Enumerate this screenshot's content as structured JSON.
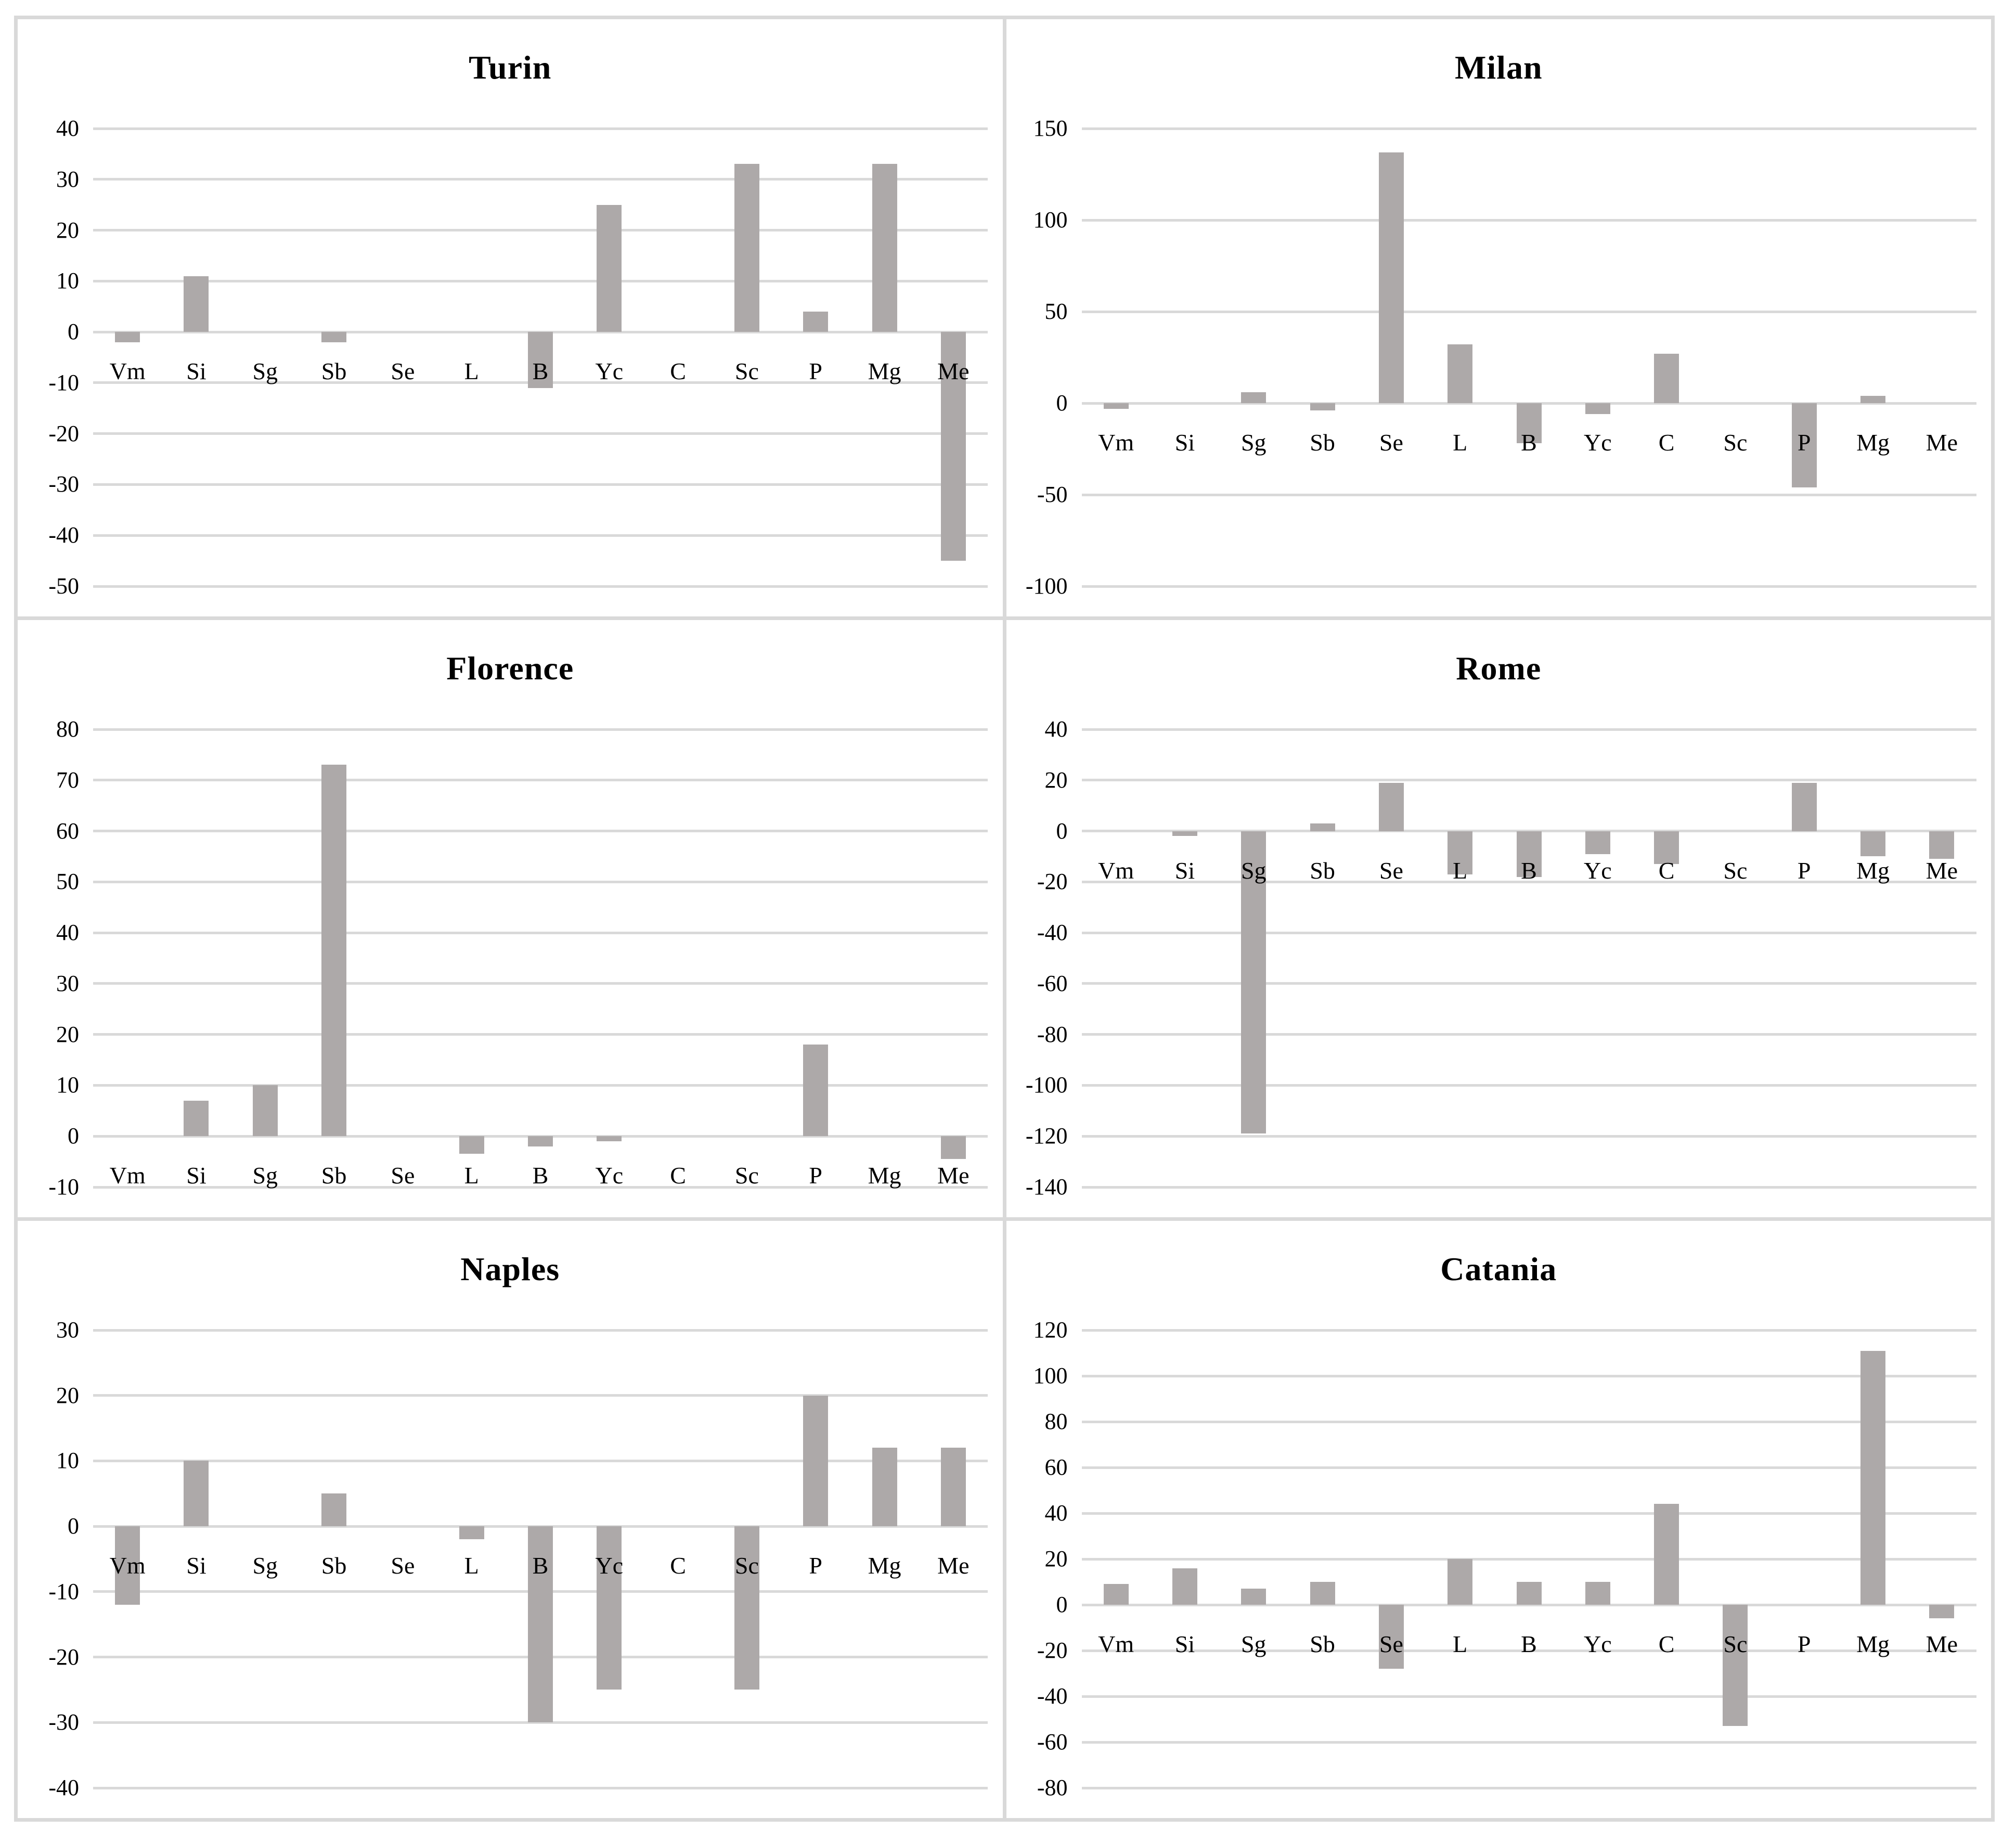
{
  "figure": {
    "kind": "small-multiples bar charts",
    "panel_titles": [
      "Turin",
      "Milan",
      "Florence",
      "Rome",
      "Naples",
      "Catania"
    ]
  },
  "colors": {
    "bar": "#ada9a9",
    "gridline": "#d9d9d9",
    "panel_border": "#d9d9d9",
    "background": "#ffffff",
    "text": "#000000"
  },
  "chart_data": [
    {
      "type": "bar",
      "title": "Turin",
      "categories": [
        "Vm",
        "Si",
        "Sg",
        "Sb",
        "Se",
        "L",
        "B",
        "Yc",
        "C",
        "Sc",
        "P",
        "Mg",
        "Me"
      ],
      "values": [
        -2,
        11,
        0,
        -2,
        0,
        0,
        -11,
        25,
        0,
        33,
        4,
        33,
        -45
      ],
      "ylim": [
        -50,
        40
      ],
      "ytick_step": 10,
      "xlabel": "",
      "ylabel": "",
      "grid": true,
      "legend": false
    },
    {
      "type": "bar",
      "title": "Milan",
      "categories": [
        "Vm",
        "Si",
        "Sg",
        "Sb",
        "Se",
        "L",
        "B",
        "Yc",
        "C",
        "Sc",
        "P",
        "Mg",
        "Me"
      ],
      "values": [
        -3,
        0,
        6,
        -4,
        137,
        32,
        -22,
        -6,
        27,
        0,
        -46,
        4,
        0
      ],
      "ylim": [
        -100,
        150
      ],
      "ytick_step": 50,
      "xlabel": "",
      "ylabel": "",
      "grid": true,
      "legend": false
    },
    {
      "type": "bar",
      "title": "Florence",
      "categories": [
        "Vm",
        "Si",
        "Sg",
        "Sb",
        "Se",
        "L",
        "B",
        "Yc",
        "C",
        "Sc",
        "P",
        "Mg",
        "Me"
      ],
      "values": [
        0,
        7,
        10,
        73,
        0,
        -3.5,
        -2,
        -1,
        0,
        0,
        18,
        0,
        -4.5
      ],
      "ylim": [
        -10,
        80
      ],
      "ytick_step": 10,
      "xlabel": "",
      "ylabel": "",
      "grid": true,
      "legend": false
    },
    {
      "type": "bar",
      "title": "Rome",
      "categories": [
        "Vm",
        "Si",
        "Sg",
        "Sb",
        "Se",
        "L",
        "B",
        "Yc",
        "C",
        "Sc",
        "P",
        "Mg",
        "Me"
      ],
      "values": [
        0,
        -2,
        -119,
        3,
        19,
        -17,
        -18,
        -9,
        -13,
        0,
        19,
        -10,
        -11
      ],
      "ylim": [
        -140,
        40
      ],
      "ytick_step": 20,
      "xlabel": "",
      "ylabel": "",
      "grid": true,
      "legend": false
    },
    {
      "type": "bar",
      "title": "Naples",
      "categories": [
        "Vm",
        "Si",
        "Sg",
        "Sb",
        "Se",
        "L",
        "B",
        "Yc",
        "C",
        "Sc",
        "P",
        "Mg",
        "Me"
      ],
      "values": [
        -12,
        10,
        0,
        5,
        0,
        -2,
        -30,
        -25,
        0,
        -25,
        20,
        12,
        12
      ],
      "ylim": [
        -40,
        30
      ],
      "ytick_step": 10,
      "xlabel": "",
      "ylabel": "",
      "grid": true,
      "legend": false
    },
    {
      "type": "bar",
      "title": "Catania",
      "categories": [
        "Vm",
        "Si",
        "Sg",
        "Sb",
        "Se",
        "L",
        "B",
        "Yc",
        "C",
        "Sc",
        "P",
        "Mg",
        "Me"
      ],
      "values": [
        9,
        16,
        7,
        10,
        -28,
        20,
        10,
        10,
        44,
        -53,
        0,
        111,
        -6
      ],
      "ylim": [
        -80,
        120
      ],
      "ytick_step": 20,
      "xlabel": "",
      "ylabel": "",
      "grid": true,
      "legend": false
    }
  ]
}
